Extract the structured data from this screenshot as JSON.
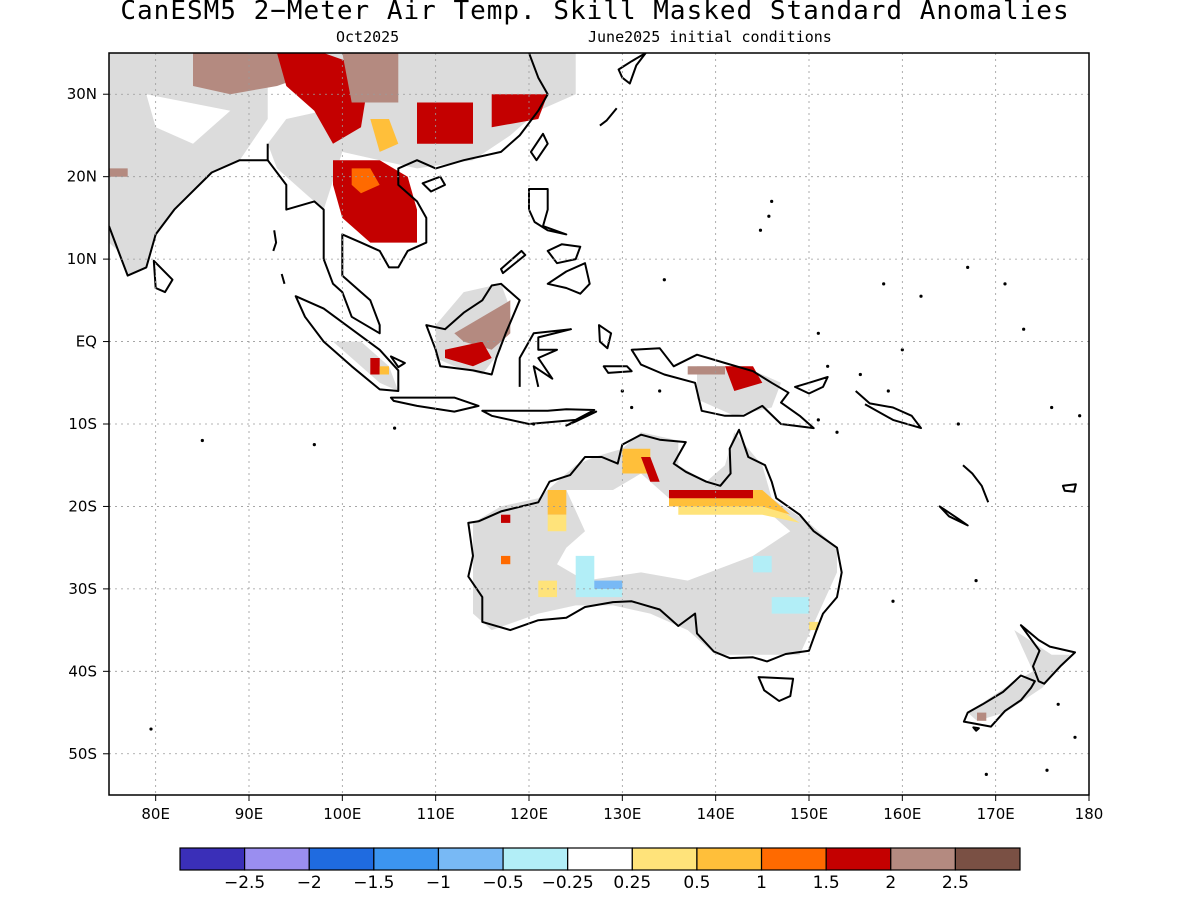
{
  "title": "CanESM5 2−Meter Air Temp. Skill Masked Standard Anomalies",
  "subtitle_left": "Oct2025",
  "subtitle_right": "June2025 initial conditions",
  "map": {
    "lon_range": [
      75,
      180
    ],
    "lat_range": [
      -55,
      35
    ],
    "lon_ticks": [
      {
        "value": 80,
        "label": "80E"
      },
      {
        "value": 90,
        "label": "90E"
      },
      {
        "value": 100,
        "label": "100E"
      },
      {
        "value": 110,
        "label": "110E"
      },
      {
        "value": 120,
        "label": "120E"
      },
      {
        "value": 130,
        "label": "130E"
      },
      {
        "value": 140,
        "label": "140E"
      },
      {
        "value": 150,
        "label": "150E"
      },
      {
        "value": 160,
        "label": "160E"
      },
      {
        "value": 170,
        "label": "170E"
      },
      {
        "value": 180,
        "label": "180"
      }
    ],
    "lat_ticks": [
      {
        "value": 30,
        "label": "30N"
      },
      {
        "value": 20,
        "label": "20N"
      },
      {
        "value": 10,
        "label": "10N"
      },
      {
        "value": 0,
        "label": "EQ"
      },
      {
        "value": -10,
        "label": "10S"
      },
      {
        "value": -20,
        "label": "20S"
      },
      {
        "value": -30,
        "label": "30S"
      },
      {
        "value": -40,
        "label": "40S"
      },
      {
        "value": -50,
        "label": "50S"
      }
    ],
    "grid": true,
    "masked_color": "#dcdcdc"
  },
  "colorbar": {
    "colors": [
      "#3a2fb8",
      "#9a8ef0",
      "#1f6be0",
      "#3c95f0",
      "#78b9f5",
      "#b2eef7",
      "#ffffff",
      "#ffe37a",
      "#ffbf3a",
      "#ff6a00",
      "#c40000",
      "#b48a80",
      "#7a5044"
    ],
    "labels": [
      "−2.5",
      "−2",
      "−1.5",
      "−1",
      "−0.5",
      "−0.25",
      "0.25",
      "0.5",
      "1",
      "1.5",
      "2",
      "2.5"
    ]
  }
}
